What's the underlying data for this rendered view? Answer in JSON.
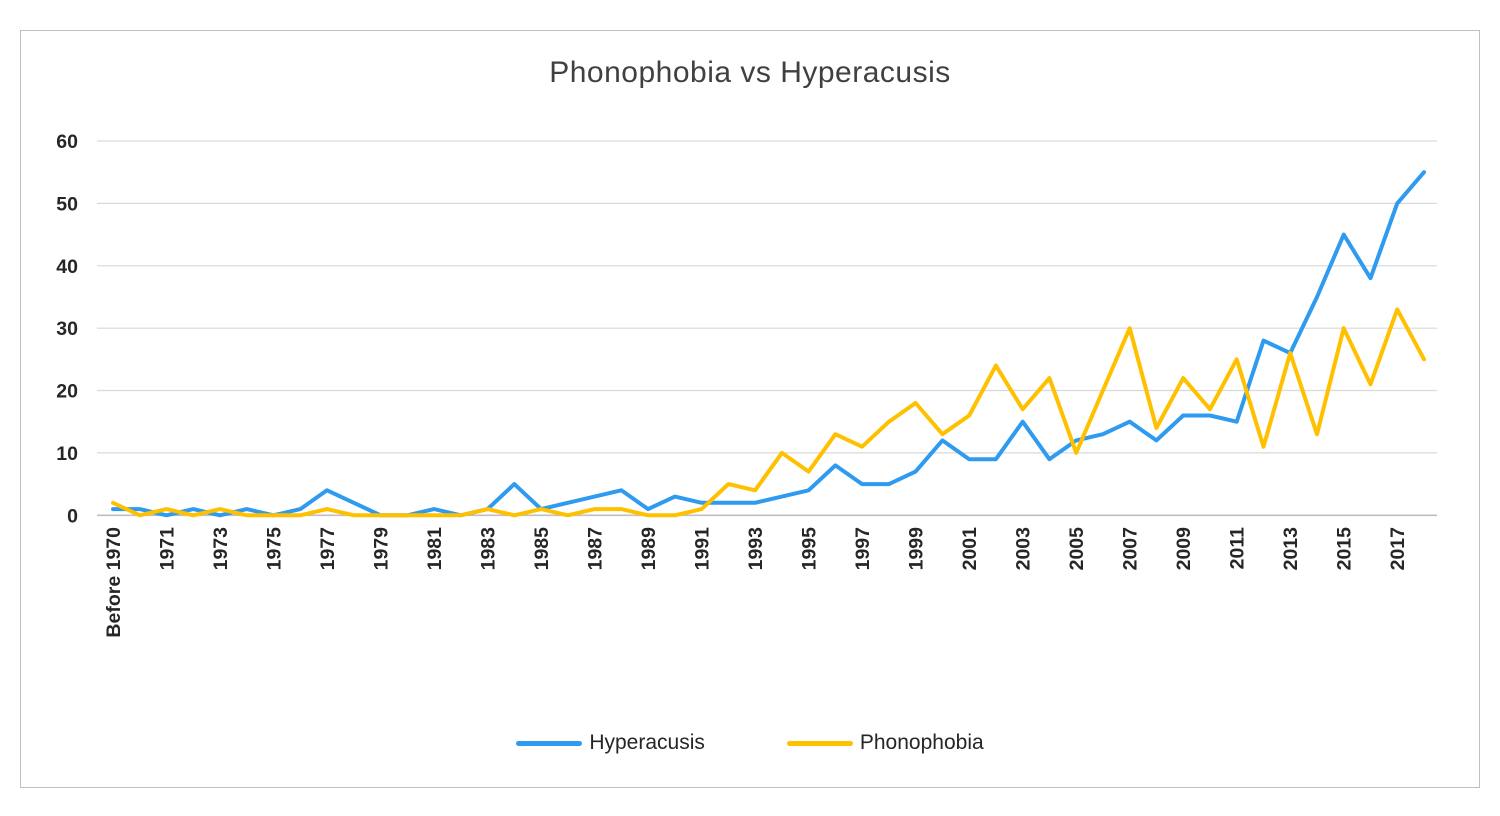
{
  "title": "Phonophobia vs Hyperacusis",
  "colors": {
    "hyperacusis": "#2E9BF0",
    "phonophobia": "#FFC000",
    "gridline": "#D9D9D9",
    "axis_line": "#BFBFBF",
    "tick_text": "#262626",
    "title_text": "#404040"
  },
  "y_axis": {
    "ticks": [
      "0",
      "10",
      "20",
      "30",
      "40",
      "50",
      "60"
    ],
    "min": 0,
    "max": 60,
    "step": 10
  },
  "x_axis": {
    "labeled_ticks": [
      "Before 1970",
      "1971",
      "1973",
      "1975",
      "1977",
      "1979",
      "1981",
      "1983",
      "1985",
      "1987",
      "1989",
      "1991",
      "1993",
      "1995",
      "1997",
      "1999",
      "2001",
      "2003",
      "2005",
      "2007",
      "2009",
      "2011",
      "2013",
      "2015",
      "2017"
    ]
  },
  "legend": [
    {
      "name": "Hyperacusis",
      "color_key": "hyperacusis"
    },
    {
      "name": "Phonophobia",
      "color_key": "phonophobia"
    }
  ],
  "chart_data": {
    "type": "line",
    "title": "Phonophobia vs Hyperacusis",
    "xlabel": "",
    "ylabel": "",
    "ylim": [
      0,
      60
    ],
    "grid": true,
    "legend_position": "bottom",
    "categories": [
      "Before 1970",
      "1970",
      "1971",
      "1972",
      "1973",
      "1974",
      "1975",
      "1976",
      "1977",
      "1978",
      "1979",
      "1980",
      "1981",
      "1982",
      "1983",
      "1984",
      "1985",
      "1986",
      "1987",
      "1988",
      "1989",
      "1990",
      "1991",
      "1992",
      "1993",
      "1994",
      "1995",
      "1996",
      "1997",
      "1998",
      "1999",
      "2000",
      "2001",
      "2002",
      "2003",
      "2004",
      "2005",
      "2006",
      "2007",
      "2008",
      "2009",
      "2010",
      "2011",
      "2012",
      "2013",
      "2014",
      "2015",
      "2016",
      "2017",
      "2018"
    ],
    "series": [
      {
        "name": "Hyperacusis",
        "color": "#2E9BF0",
        "values": [
          1,
          1,
          0,
          1,
          0,
          1,
          0,
          1,
          4,
          2,
          0,
          0,
          1,
          0,
          1,
          5,
          1,
          2,
          3,
          4,
          1,
          3,
          2,
          2,
          2,
          3,
          4,
          8,
          5,
          5,
          7,
          12,
          9,
          9,
          15,
          9,
          12,
          13,
          15,
          12,
          16,
          16,
          15,
          28,
          26,
          35,
          45,
          38,
          50,
          55
        ]
      },
      {
        "name": "Phonophobia",
        "color": "#FFC000",
        "values": [
          2,
          0,
          1,
          0,
          1,
          0,
          0,
          0,
          1,
          0,
          0,
          0,
          0,
          0,
          1,
          0,
          1,
          0,
          1,
          1,
          0,
          0,
          1,
          5,
          4,
          10,
          7,
          13,
          11,
          15,
          18,
          13,
          16,
          24,
          17,
          22,
          10,
          20,
          30,
          14,
          22,
          17,
          25,
          11,
          26,
          13,
          30,
          21,
          33,
          25
        ]
      }
    ]
  }
}
